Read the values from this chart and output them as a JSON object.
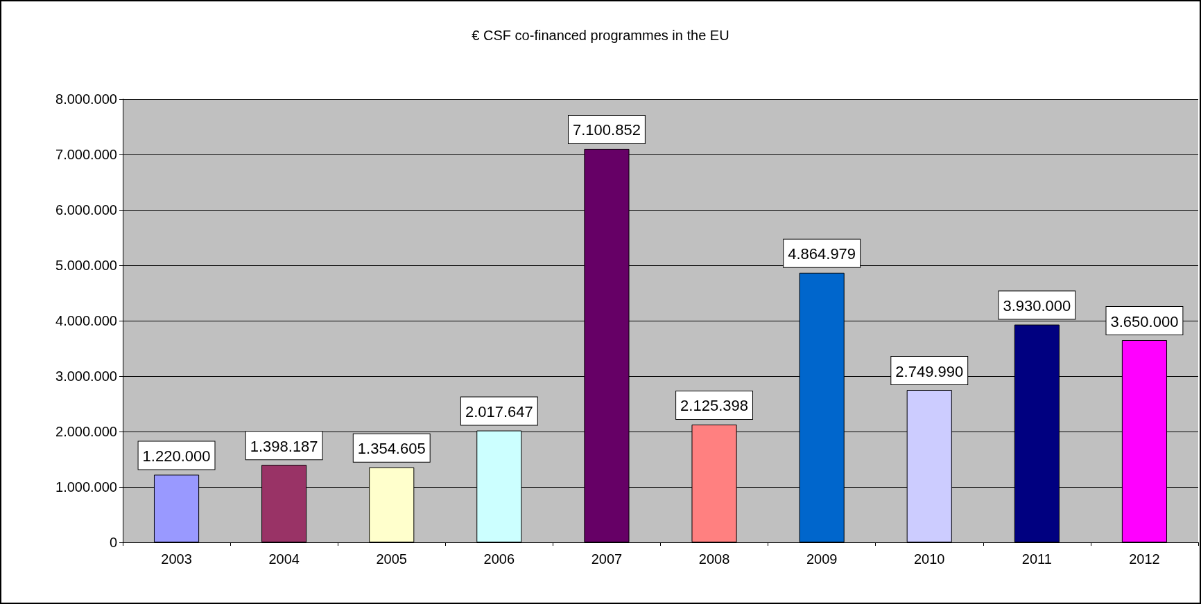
{
  "chart_data": {
    "type": "bar",
    "title": "€ CSF co-financed programmes in the EU",
    "categories": [
      "2003",
      "2004",
      "2005",
      "2006",
      "2007",
      "2008",
      "2009",
      "2010",
      "2011",
      "2012"
    ],
    "values": [
      1220000,
      1398187,
      1354605,
      2017647,
      7100852,
      2125398,
      4864979,
      2749990,
      3930000,
      3650000
    ],
    "colors": [
      "#9999ff",
      "#993366",
      "#ffffcc",
      "#ccffff",
      "#660066",
      "#ff8080",
      "#0066cc",
      "#ccccff",
      "#000080",
      "#ff00ff"
    ],
    "value_labels": [
      "1.220.000",
      "1.398.187",
      "1.354.605",
      "2.017.647",
      "7.100.852",
      "2.125.398",
      "4.864.979",
      "2.749.990",
      "3.930.000",
      "3.650.000"
    ],
    "ylim": [
      0,
      8000000
    ],
    "yticks": [
      {
        "value": 0,
        "label": "0"
      },
      {
        "value": 1000000,
        "label": "1.000.000"
      },
      {
        "value": 2000000,
        "label": "2.000.000"
      },
      {
        "value": 3000000,
        "label": "3.000.000"
      },
      {
        "value": 4000000,
        "label": "4.000.000"
      },
      {
        "value": 5000000,
        "label": "5.000.000"
      },
      {
        "value": 6000000,
        "label": "6.000.000"
      },
      {
        "value": 7000000,
        "label": "7.000.000"
      },
      {
        "value": 8000000,
        "label": "8.000.000"
      }
    ],
    "grid": "y"
  }
}
